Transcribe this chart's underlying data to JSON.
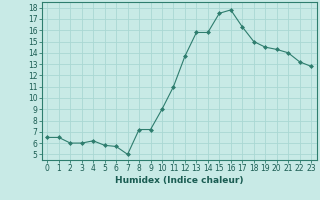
{
  "x": [
    0,
    1,
    2,
    3,
    4,
    5,
    6,
    7,
    8,
    9,
    10,
    11,
    12,
    13,
    14,
    15,
    16,
    17,
    18,
    19,
    20,
    21,
    22,
    23
  ],
  "y": [
    6.5,
    6.5,
    6.0,
    6.0,
    6.2,
    5.8,
    5.7,
    5.0,
    7.2,
    7.2,
    9.0,
    11.0,
    13.7,
    15.8,
    15.8,
    17.5,
    17.8,
    16.3,
    15.0,
    14.5,
    14.3,
    14.0,
    13.2,
    12.8
  ],
  "line_color": "#2e7d6e",
  "marker": "D",
  "marker_size": 2,
  "bg_color": "#c8eae6",
  "grid_color": "#aad8d3",
  "xlabel": "Humidex (Indice chaleur)",
  "xlim": [
    -0.5,
    23.5
  ],
  "ylim": [
    4.5,
    18.5
  ],
  "yticks": [
    5,
    6,
    7,
    8,
    9,
    10,
    11,
    12,
    13,
    14,
    15,
    16,
    17,
    18
  ],
  "xticks": [
    0,
    1,
    2,
    3,
    4,
    5,
    6,
    7,
    8,
    9,
    10,
    11,
    12,
    13,
    14,
    15,
    16,
    17,
    18,
    19,
    20,
    21,
    22,
    23
  ],
  "label_fontsize": 6.5,
  "tick_fontsize": 5.5
}
